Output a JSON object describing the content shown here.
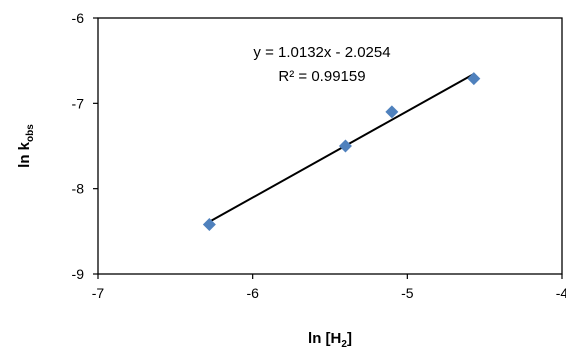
{
  "chart_data": {
    "type": "scatter",
    "xlim": [
      -7,
      -4
    ],
    "ylim": [
      -9,
      -6
    ],
    "xticks": [
      -7,
      -6,
      -5,
      -4
    ],
    "yticks": [
      -6,
      -7,
      -8,
      -9
    ],
    "xlabel": {
      "main": "ln [H",
      "sub": "2",
      "end": "]"
    },
    "ylabel": {
      "main": "ln k",
      "sub": "obs"
    },
    "grid": false,
    "legend": "none",
    "marker_color": "#4F81BD",
    "line_color": "#000000",
    "points": [
      {
        "x": -6.28,
        "y": -8.42
      },
      {
        "x": -5.4,
        "y": -7.5
      },
      {
        "x": -5.1,
        "y": -7.1
      },
      {
        "x": -4.57,
        "y": -6.71
      }
    ],
    "trendline": {
      "slope": 1.0132,
      "intercept": -2.0254,
      "x_range": [
        -6.28,
        -4.57
      ],
      "equation": "y = 1.0132x - 2.0254",
      "r_squared": "R² = 0.99159"
    }
  }
}
